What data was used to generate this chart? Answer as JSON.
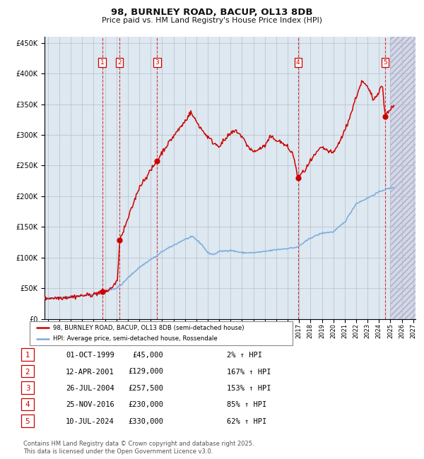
{
  "title": "98, BURNLEY ROAD, BACUP, OL13 8DB",
  "subtitle": "Price paid vs. HM Land Registry's House Price Index (HPI)",
  "background_color": "#dde8f0",
  "hatch_background": "#e8e8f0",
  "grid_color": "#bbbbcc",
  "sale_color": "#cc0000",
  "hpi_color": "#7aaadd",
  "ylim": [
    0,
    460000
  ],
  "yticks": [
    0,
    50000,
    100000,
    150000,
    200000,
    250000,
    300000,
    350000,
    400000,
    450000
  ],
  "xlim_start": 1994.7,
  "xlim_end": 2027.2,
  "sales": [
    {
      "label": "1",
      "date": 1999.75,
      "price": 45000
    },
    {
      "label": "2",
      "date": 2001.28,
      "price": 129000
    },
    {
      "label": "3",
      "date": 2004.57,
      "price": 257500
    },
    {
      "label": "4",
      "date": 2016.9,
      "price": 230000
    },
    {
      "label": "5",
      "date": 2024.53,
      "price": 330000
    }
  ],
  "legend_sale_label": "98, BURNLEY ROAD, BACUP, OL13 8DB (semi-detached house)",
  "legend_hpi_label": "HPI: Average price, semi-detached house, Rossendale",
  "table_rows": [
    [
      "1",
      "01-OCT-1999",
      "£45,000",
      "2% ↑ HPI"
    ],
    [
      "2",
      "12-APR-2001",
      "£129,000",
      "167% ↑ HPI"
    ],
    [
      "3",
      "26-JUL-2004",
      "£257,500",
      "153% ↑ HPI"
    ],
    [
      "4",
      "25-NOV-2016",
      "£230,000",
      "85% ↑ HPI"
    ],
    [
      "5",
      "10-JUL-2024",
      "£330,000",
      "62% ↑ HPI"
    ]
  ],
  "footnote": "Contains HM Land Registry data © Crown copyright and database right 2025.\nThis data is licensed under the Open Government Licence v3.0."
}
